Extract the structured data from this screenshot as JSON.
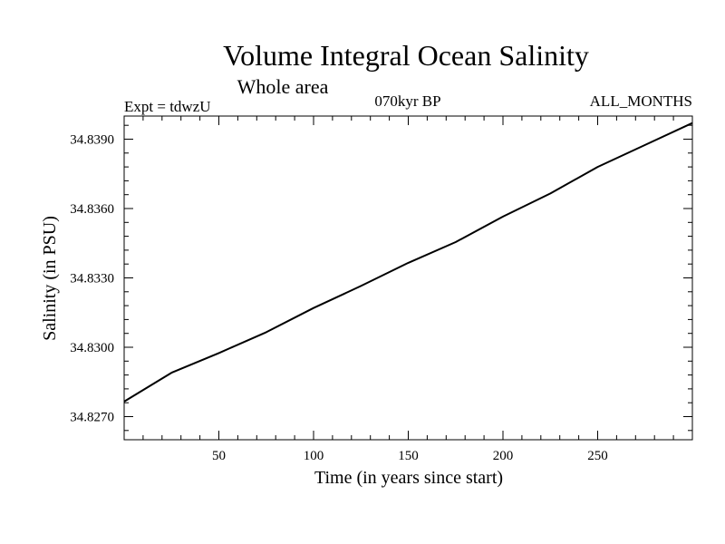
{
  "chart_data": {
    "type": "line",
    "title": "Volume Integral Ocean Salinity",
    "subtitle": "Whole area",
    "experiment_label": "Expt = tdwzU",
    "period_label": "070kyr BP",
    "season_label": "ALL_MONTHS",
    "xlabel": "Time (in years since start)",
    "ylabel": "Salinity (in PSU)",
    "xlim": [
      0,
      300
    ],
    "ylim": [
      34.826,
      34.84
    ],
    "xticks": [
      50,
      100,
      150,
      200,
      250
    ],
    "yticks": [
      34.827,
      34.83,
      34.833,
      34.836,
      34.839
    ],
    "ytick_labels": [
      "34.8270",
      "34.8300",
      "34.8330",
      "34.8360",
      "34.8390"
    ],
    "grid": false,
    "series": [
      {
        "x": [
          0,
          25,
          50,
          75,
          100,
          125,
          150,
          175,
          200,
          225,
          250,
          275,
          300
        ],
        "values": [
          34.82765,
          34.8289,
          34.82975,
          34.83065,
          34.8317,
          34.83265,
          34.83365,
          34.83455,
          34.83565,
          34.83665,
          34.8378,
          34.83875,
          34.8397
        ]
      }
    ]
  }
}
